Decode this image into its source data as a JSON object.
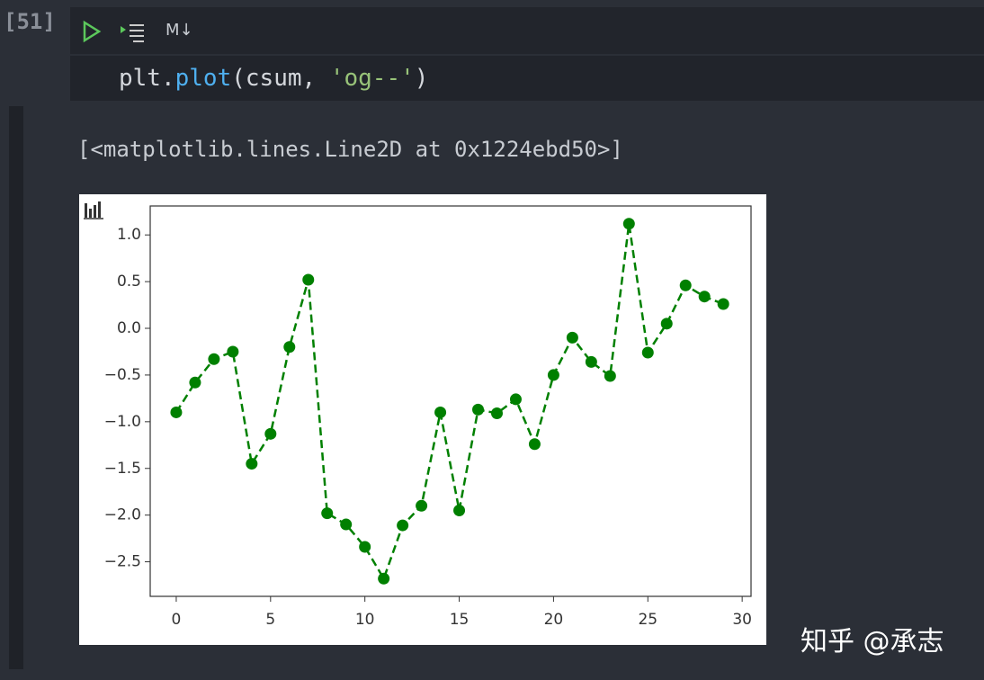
{
  "cell": {
    "prompt": "[51]",
    "toolbar_markdown": "M↓",
    "code_tokens": [
      "plt.",
      "plot",
      "(csum, ",
      "'og--'",
      ")"
    ],
    "output_text": "[<matplotlib.lines.Line2D at 0x1224ebd50>]"
  },
  "watermark": "知乎 @承志",
  "chart_data": {
    "type": "line",
    "x": [
      0,
      1,
      2,
      3,
      4,
      5,
      6,
      7,
      8,
      9,
      10,
      11,
      12,
      13,
      14,
      15,
      16,
      17,
      18,
      19,
      20,
      21,
      22,
      23,
      24,
      25,
      26,
      27,
      28,
      29
    ],
    "series": [
      {
        "color": "#008000",
        "marker": "o",
        "linestyle": "dashed",
        "values": [
          -0.9,
          -0.58,
          -0.33,
          -0.25,
          -1.45,
          -1.13,
          -0.2,
          0.52,
          -1.98,
          -2.1,
          -2.34,
          -2.68,
          -2.11,
          -1.9,
          -0.9,
          -1.95,
          -0.87,
          -0.91,
          -0.76,
          -1.24,
          -0.5,
          -0.1,
          -0.36,
          -0.51,
          1.12,
          -0.26,
          0.05,
          0.46,
          0.34,
          0.26
        ]
      }
    ],
    "xlim": [
      -1.38,
      30.47
    ],
    "ylim": [
      -2.87,
      1.31
    ],
    "xticks": [
      0,
      5,
      10,
      15,
      20,
      25,
      30
    ],
    "yticks": [
      {
        "value": 1,
        "label": "1.0"
      },
      {
        "value": 0.5,
        "label": "0.5"
      },
      {
        "value": 0,
        "label": "0.0"
      },
      {
        "value": -0.5,
        "label": "−0.5"
      },
      {
        "value": -1,
        "label": "−1.0"
      },
      {
        "value": -1.5,
        "label": "−1.5"
      },
      {
        "value": -2,
        "label": "−2.0"
      },
      {
        "value": -2.5,
        "label": "−2.5"
      }
    ]
  }
}
